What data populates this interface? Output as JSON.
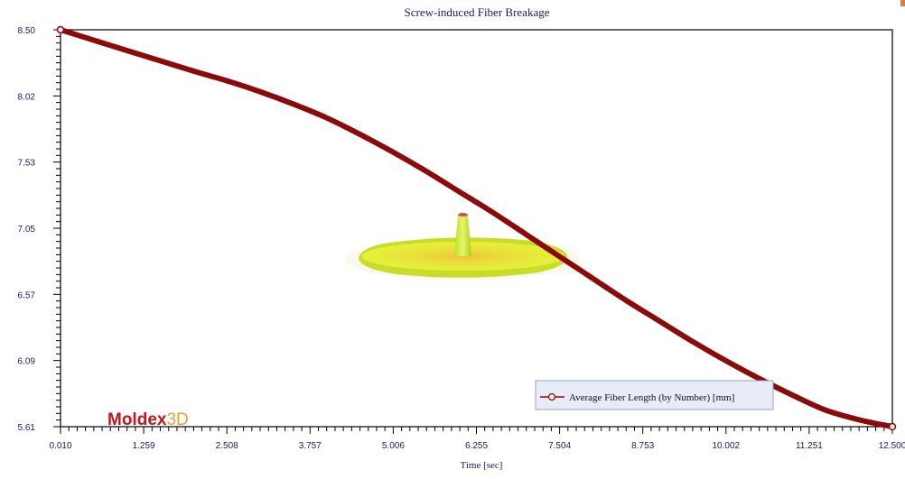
{
  "chart_data": {
    "type": "line",
    "title": "Screw-induced Fiber Breakage",
    "xlabel": "Time [sec]",
    "ylabel": "",
    "xlim": [
      0.01,
      12.5
    ],
    "ylim": [
      5.61,
      8.5
    ],
    "x_ticks": [
      "0.010",
      "1.259",
      "2.508",
      "3.757",
      "5.006",
      "6.255",
      "7.504",
      "8.753",
      "10.002",
      "11.251",
      "12.500"
    ],
    "y_ticks": [
      "8.50",
      "8.02",
      "7.53",
      "7.05",
      "6.57",
      "6.09",
      "5.61"
    ],
    "grid": false,
    "legend_position": "bottom-right",
    "series": [
      {
        "name": "Average Fiber Length (by Number) [mm]",
        "color": "#8b0a0a",
        "x": [
          0.01,
          1.0,
          2.0,
          2.5,
          3.0,
          3.5,
          4.0,
          4.5,
          5.0,
          5.5,
          6.0,
          6.5,
          7.0,
          7.5,
          8.0,
          8.5,
          9.0,
          9.5,
          10.0,
          10.5,
          11.0,
          11.5,
          12.0,
          12.5
        ],
        "y": [
          8.5,
          8.35,
          8.2,
          8.13,
          8.05,
          7.96,
          7.86,
          7.74,
          7.61,
          7.47,
          7.32,
          7.17,
          7.01,
          6.85,
          6.69,
          6.53,
          6.38,
          6.23,
          6.09,
          5.96,
          5.84,
          5.73,
          5.66,
          5.61
        ]
      }
    ]
  },
  "watermark": {
    "logo_text_main": "Moldex",
    "logo_text_suffix": "3D",
    "logo_color_main": "#c0161c",
    "logo_color_suffix": "#e8a03a",
    "part_icon": "injection-molded-disc-part-icon",
    "part_color": "#dff02a"
  }
}
